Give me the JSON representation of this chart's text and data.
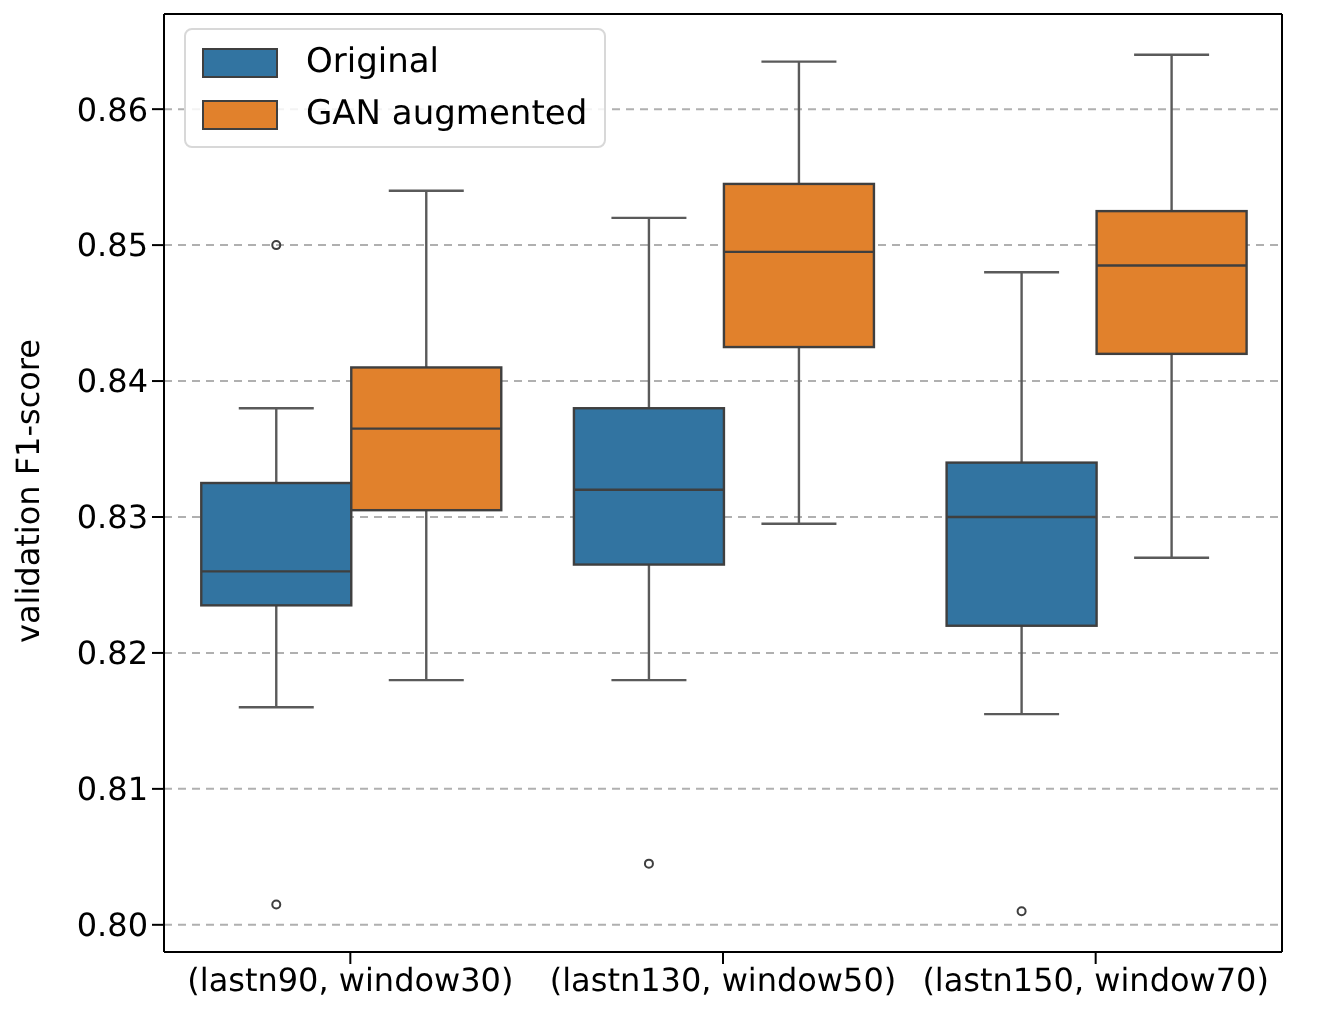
{
  "chart_data": {
    "type": "box",
    "ylabel": "validation F1-score",
    "categories": [
      "(lastn90, window30)",
      "(lastn130, window50)",
      "(lastn150, window70)"
    ],
    "series": [
      {
        "name": "Original",
        "color": "#3274a1",
        "boxes": [
          {
            "low": 0.816,
            "q1": 0.8235,
            "median": 0.826,
            "q3": 0.8325,
            "high": 0.838,
            "outliers": [
              0.85,
              0.8015
            ]
          },
          {
            "low": 0.818,
            "q1": 0.8265,
            "median": 0.832,
            "q3": 0.838,
            "high": 0.852,
            "outliers": [
              0.8045
            ]
          },
          {
            "low": 0.8155,
            "q1": 0.822,
            "median": 0.83,
            "q3": 0.834,
            "high": 0.848,
            "outliers": [
              0.801
            ]
          }
        ]
      },
      {
        "name": "GAN augmented",
        "color": "#e1812c",
        "boxes": [
          {
            "low": 0.818,
            "q1": 0.8305,
            "median": 0.8365,
            "q3": 0.841,
            "high": 0.854
          },
          {
            "low": 0.8295,
            "q1": 0.8425,
            "median": 0.8495,
            "q3": 0.8545,
            "high": 0.8635
          },
          {
            "low": 0.827,
            "q1": 0.842,
            "median": 0.8485,
            "q3": 0.8525,
            "high": 0.864
          }
        ]
      }
    ],
    "ylim": [
      0.798,
      0.867
    ],
    "yticks": [
      {
        "value": 0.8,
        "label": "0.80"
      },
      0.81,
      0.82,
      0.83,
      0.84,
      0.85,
      0.86
    ],
    "grid": "y",
    "legend": "top left"
  }
}
